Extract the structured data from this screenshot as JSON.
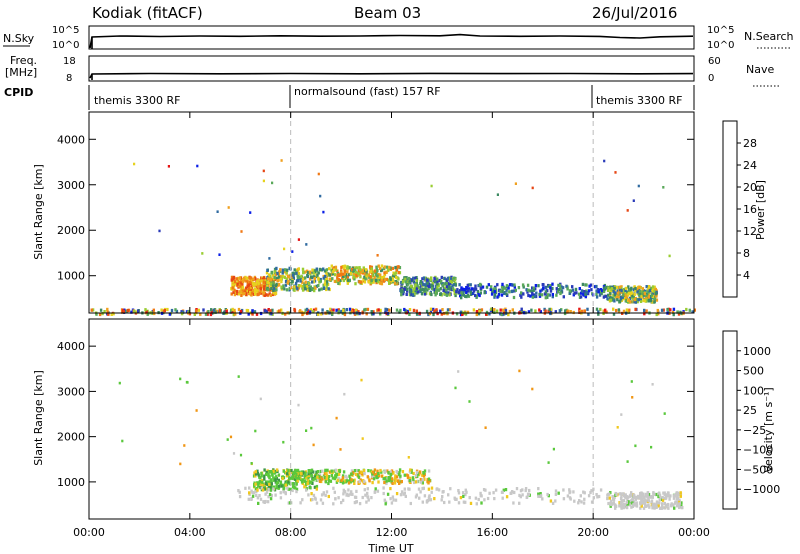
{
  "header": {
    "station": "Kodiak (fitACF)",
    "beam": "Beam 03",
    "date": "26/Jul/2016"
  },
  "strips": {
    "nsky_label": "N.Sky",
    "nsky_ticks": [
      "10^5",
      "10^0"
    ],
    "nsearch_label": "N.Search",
    "nsearch_ticks": [
      "10^5",
      "10^0"
    ],
    "freq_label": "Freq.",
    "freq_unit": "[MHz]",
    "freq_ticks": [
      "18",
      "8"
    ],
    "nave_label": "Nave",
    "nave_ticks": [
      "60",
      "0"
    ],
    "cpid_label": "CPID",
    "cpid_segments": [
      {
        "label": "themis 3300 RF",
        "start_hour": 0,
        "end_hour": 8
      },
      {
        "label": "normalsound (fast) 157 RF",
        "start_hour": 8,
        "end_hour": 20
      },
      {
        "label": "themis 3300 RF",
        "start_hour": 20,
        "end_hour": 24
      }
    ]
  },
  "chart_data": [
    {
      "type": "heatmap",
      "ylabel": "Slant Range [km]",
      "xlim": [
        0,
        24
      ],
      "ylim": [
        180,
        4600
      ],
      "yticks": [
        1000,
        2000,
        3000,
        4000
      ],
      "xticks": [
        "00:00",
        "04:00",
        "08:00",
        "12:00",
        "16:00",
        "20:00",
        "00:00"
      ],
      "xtick_hours": [
        0,
        4,
        8,
        12,
        16,
        20,
        24
      ],
      "dashed_lines_hours": [
        8,
        20
      ],
      "colorbar": {
        "label": "Power [dB]",
        "ticks": [
          "4",
          "8",
          "12",
          "16",
          "20",
          "24",
          "28"
        ],
        "colors": [
          "#0a1ee6",
          "#2a3ab8",
          "#2f6aa0",
          "#3d8a62",
          "#5aa85a",
          "#9acd32",
          "#e6d21e",
          "#f0a01e",
          "#f07814",
          "#e64614",
          "#e61414"
        ]
      },
      "regions": [
        {
          "t0": 5.6,
          "t1": 7.4,
          "r0": 600,
          "r1": 1000,
          "level": "high"
        },
        {
          "t0": 7.0,
          "t1": 9.5,
          "r0": 700,
          "r1": 1200,
          "level": "med"
        },
        {
          "t0": 9.5,
          "t1": 12.3,
          "r0": 850,
          "r1": 1250,
          "level": "med-high"
        },
        {
          "t0": 12.3,
          "t1": 14.5,
          "r0": 600,
          "r1": 1000,
          "level": "low-med"
        },
        {
          "t0": 14.5,
          "t1": 20.5,
          "r0": 550,
          "r1": 850,
          "level": "low"
        },
        {
          "t0": 20.5,
          "t1": 22.5,
          "r0": 450,
          "r1": 800,
          "level": "med"
        },
        {
          "t0": 0,
          "t1": 24,
          "r0": 180,
          "r1": 300,
          "level": "mixed"
        }
      ]
    },
    {
      "type": "heatmap",
      "ylabel": "Slant Range [km]",
      "xlabel": "Time UT",
      "xlim": [
        0,
        24
      ],
      "ylim": [
        180,
        4600
      ],
      "yticks": [
        1000,
        2000,
        3000,
        4000
      ],
      "xticks": [
        "00:00",
        "04:00",
        "08:00",
        "12:00",
        "16:00",
        "20:00",
        "00:00"
      ],
      "xtick_hours": [
        0,
        4,
        8,
        12,
        16,
        20,
        24
      ],
      "dashed_lines_hours": [
        8,
        20
      ],
      "colorbar": {
        "label": "Velocity [m s⁻¹]",
        "ticks": [
          "1000",
          "500",
          "100",
          "25",
          "−25",
          "−100",
          "−500",
          "−1000"
        ],
        "colors": [
          "#1e3cc8",
          "#2a64b4",
          "#3c9646",
          "#5ac83c",
          "#c8c8c8",
          "#f0c81e",
          "#f09614",
          "#f05a14",
          "#e61414"
        ]
      },
      "regions": [
        {
          "t0": 6.5,
          "t1": 9.0,
          "r0": 850,
          "r1": 1300,
          "level": "positive ~100"
        },
        {
          "t0": 9.0,
          "t1": 13.5,
          "r0": 1000,
          "r1": 1300,
          "level": "mixed ±100"
        },
        {
          "t0": 5.8,
          "t1": 20.5,
          "r0": 550,
          "r1": 900,
          "level": "near zero"
        },
        {
          "t0": 20.5,
          "t1": 23.5,
          "r0": 450,
          "r1": 800,
          "level": "near zero"
        }
      ]
    }
  ]
}
